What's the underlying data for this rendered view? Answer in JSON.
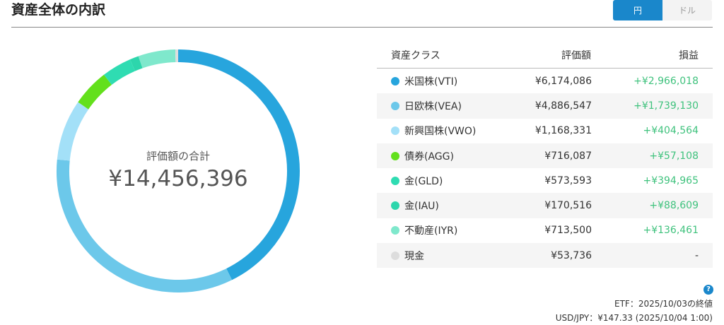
{
  "header": {
    "title": "資産全体の内訳",
    "currency_yen": "円",
    "currency_usd": "ドル"
  },
  "summary": {
    "label": "評価額の合計",
    "total": "¥14,456,396"
  },
  "table": {
    "headers": [
      "資産クラス",
      "評価額",
      "損益"
    ],
    "rows": [
      {
        "name": "米国株(VTI)",
        "value": "¥6,174,086",
        "pl": "+¥2,966,018",
        "color": "#27a5dd",
        "amount": 6174086
      },
      {
        "name": "日欧株(VEA)",
        "value": "¥4,886,547",
        "pl": "+¥1,739,130",
        "color": "#6cc8ea",
        "amount": 4886547
      },
      {
        "name": "新興国株(VWO)",
        "value": "¥1,168,331",
        "pl": "+¥404,564",
        "color": "#a3e0f8",
        "amount": 1168331
      },
      {
        "name": "債券(AGG)",
        "value": "¥716,087",
        "pl": "+¥57,108",
        "color": "#63e01c",
        "amount": 716087
      },
      {
        "name": "金(GLD)",
        "value": "¥573,593",
        "pl": "+¥394,965",
        "color": "#2fdcb2",
        "amount": 573593
      },
      {
        "name": "金(IAU)",
        "value": "¥170,516",
        "pl": "+¥88,609",
        "color": "#2dd6ac",
        "amount": 170516
      },
      {
        "name": "不動産(IYR)",
        "value": "¥713,500",
        "pl": "+¥136,461",
        "color": "#7fe8cc",
        "amount": 713500
      },
      {
        "name": "現金",
        "value": "¥53,736",
        "pl": "-",
        "color": "#dddddd",
        "amount": 53736
      }
    ]
  },
  "footer": {
    "help_icon": "?",
    "etf_note": "ETF：2025/10/03の終値",
    "fx_note": "USD/JPY：¥147.33 (2025/10/04 1:00)"
  }
}
